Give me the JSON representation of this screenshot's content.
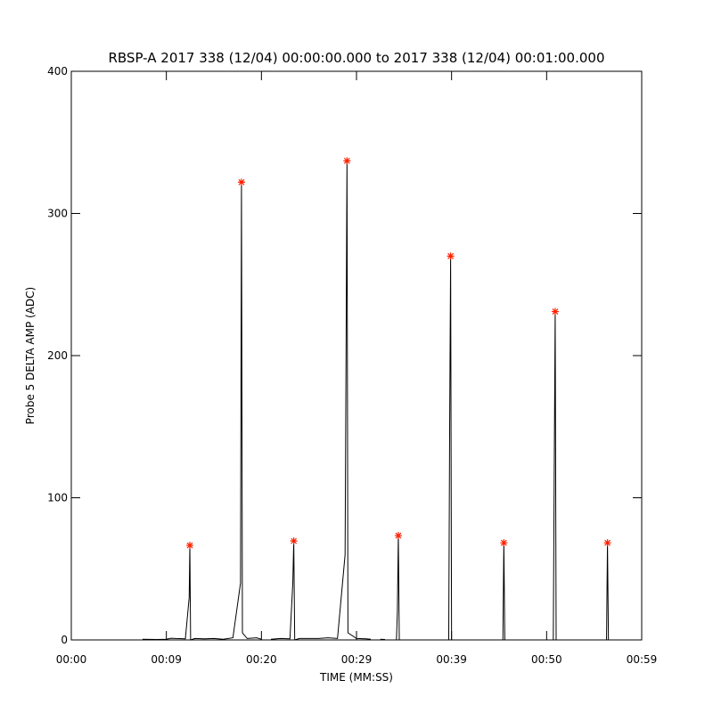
{
  "chart_data": {
    "type": "line",
    "title": "RBSP-A 2017 338 (12/04) 00:00:00.000 to 2017 338 (12/04) 00:01:00.000",
    "xlabel": "TIME (MM:SS)",
    "ylabel": "Probe 5 DELTA AMP (ADC)",
    "xlim": [
      0,
      60
    ],
    "ylim": [
      0,
      400
    ],
    "xticks": [
      {
        "value": 0,
        "label": "00:00"
      },
      {
        "value": 10,
        "label": "00:09"
      },
      {
        "value": 20,
        "label": "00:20"
      },
      {
        "value": 30,
        "label": "00:29"
      },
      {
        "value": 40,
        "label": "00:39"
      },
      {
        "value": 50,
        "label": "00:50"
      },
      {
        "value": 60,
        "label": "00:59"
      }
    ],
    "yticks": [
      0,
      100,
      200,
      300,
      400
    ],
    "series": [
      {
        "name": "signal",
        "color": "#000000",
        "kind": "line",
        "x": [
          7.5,
          9,
          10,
          10.5,
          11,
          12,
          12.4,
          12.47,
          12.55,
          13,
          14,
          15,
          16,
          17,
          17.8,
          17.9,
          18,
          18.5,
          19.5,
          20,
          20.5,
          21,
          22,
          23,
          23.3,
          23.4,
          23.5,
          24,
          26,
          27,
          28,
          28.8,
          29,
          29.1,
          30,
          31,
          31.5,
          32,
          32.5,
          33,
          33.5,
          34.2,
          34.3,
          34.4,
          34.5,
          35,
          39.7,
          39.8,
          39.9,
          40,
          41,
          45.4,
          45.5,
          45.6,
          46,
          50.7,
          50.8,
          50.9,
          51,
          52,
          56.3,
          56.4,
          56.5
        ],
        "values": [
          0.5,
          0.3,
          0.5,
          1.2,
          1,
          0.8,
          30,
          66.5,
          0,
          1,
          0.8,
          1,
          0.5,
          1.5,
          40,
          322,
          5,
          1,
          1.5,
          0.5,
          null,
          0.5,
          1,
          0.8,
          40,
          69.6,
          0,
          1,
          1,
          1.5,
          1,
          60,
          337,
          5,
          1,
          0.8,
          0.5,
          null,
          0.5,
          0.3,
          null,
          0,
          20,
          73.4,
          0,
          null,
          0,
          150,
          270,
          0,
          null,
          0,
          68.3,
          0,
          null,
          0,
          120,
          231,
          0,
          null,
          0,
          68.3,
          0
        ]
      },
      {
        "name": "peaks",
        "color": "#ff2000",
        "kind": "marker",
        "x": [
          12.47,
          17.9,
          23.4,
          29.0,
          34.4,
          39.9,
          45.5,
          50.9,
          56.4
        ],
        "values": [
          66.5,
          322,
          69.6,
          337,
          73.4,
          270,
          68.3,
          231,
          68.3
        ]
      }
    ]
  }
}
